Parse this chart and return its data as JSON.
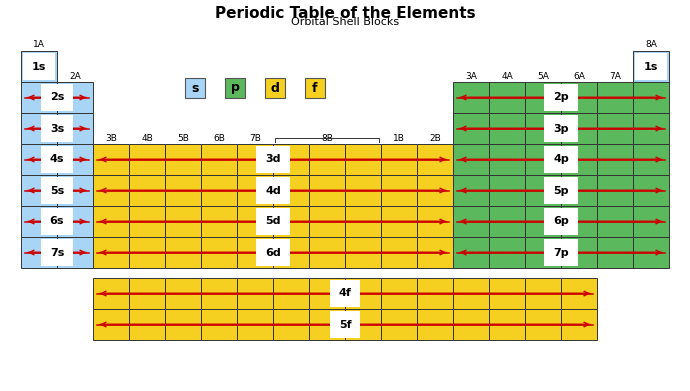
{
  "title": "Periodic Table of the Elements",
  "subtitle": "Orbital Shell Blocks",
  "color_s": "#a8d4f5",
  "color_p": "#5cb85c",
  "color_d": "#f5d020",
  "color_f": "#f5d020",
  "color_arrow": "#cc0000",
  "period_labels": [
    "1s",
    "2s",
    "3s",
    "4s",
    "5s",
    "6s",
    "7s"
  ],
  "p_labels": [
    "2p",
    "3p",
    "4p",
    "5p",
    "6p",
    "7p"
  ],
  "d_labels": [
    "3d",
    "4d",
    "5d",
    "6d"
  ],
  "f_labels": [
    "4f",
    "5f"
  ],
  "legend_labels": [
    "s",
    "p",
    "d",
    "f"
  ]
}
